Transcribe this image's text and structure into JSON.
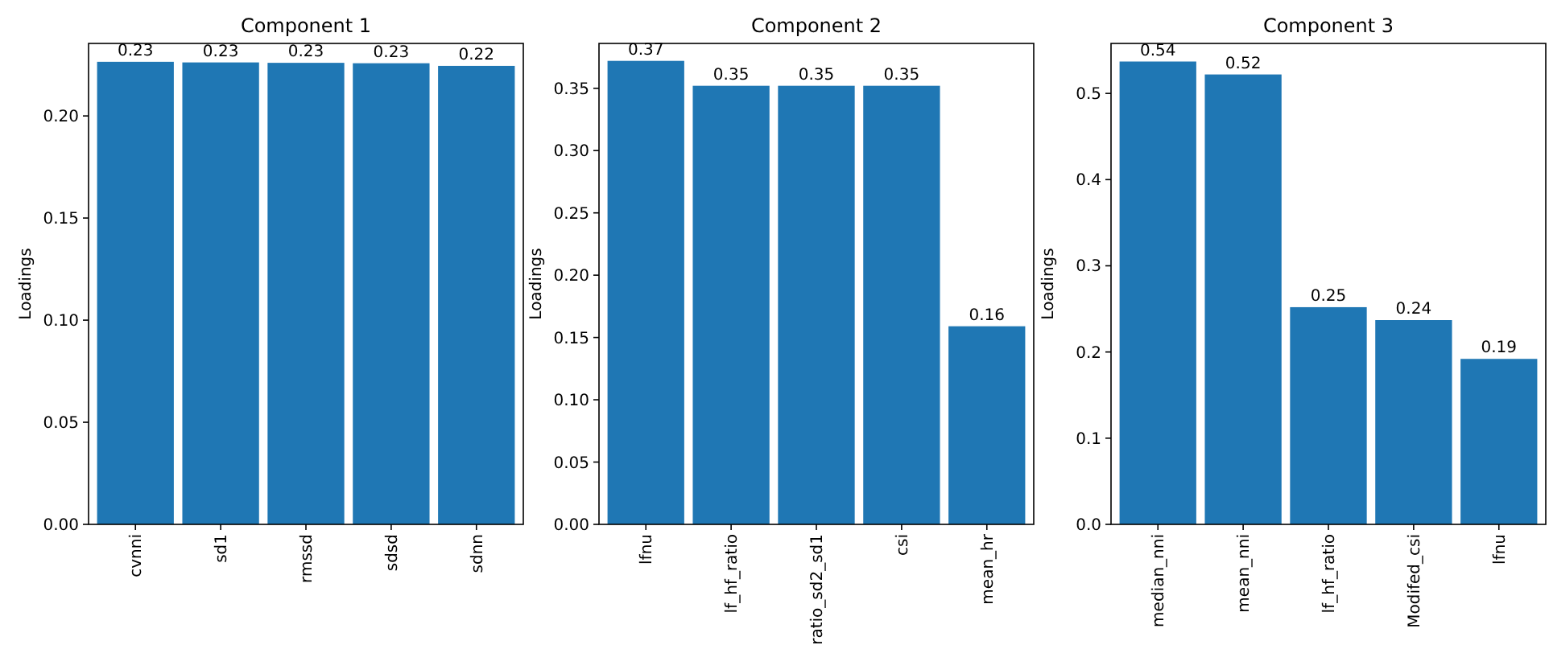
{
  "chart_data": [
    {
      "type": "bar",
      "title": "Component 1",
      "ylabel": "Loadings",
      "categories": [
        "cvnni",
        "sd1",
        "rmssd",
        "sdsd",
        "sdnn"
      ],
      "values": [
        0.2265,
        0.2262,
        0.226,
        0.2258,
        0.2245
      ],
      "value_labels": [
        "0.23",
        "0.23",
        "0.23",
        "0.23",
        "0.22"
      ],
      "color": "#1f77b4",
      "ylim": [
        0,
        0.2355
      ],
      "yticks": [
        {
          "value": 0,
          "label": "0.00"
        },
        {
          "value": 0.05,
          "label": "0.05"
        },
        {
          "value": 0.1,
          "label": "0.10"
        },
        {
          "value": 0.15,
          "label": "0.15"
        },
        {
          "value": 0.2,
          "label": "0.20"
        }
      ],
      "grid": false
    },
    {
      "type": "bar",
      "title": "Component 2",
      "ylabel": "Loadings",
      "categories": [
        "lfnu",
        "lf_hf_ratio",
        "ratio_sd2_sd1",
        "csi",
        "mean_hr"
      ],
      "values": [
        0.372,
        0.352,
        0.352,
        0.352,
        0.159
      ],
      "value_labels": [
        "0.37",
        "0.35",
        "0.35",
        "0.35",
        "0.16"
      ],
      "color": "#1f77b4",
      "ylim": [
        0,
        0.386
      ],
      "yticks": [
        {
          "value": 0,
          "label": "0.00"
        },
        {
          "value": 0.05,
          "label": "0.05"
        },
        {
          "value": 0.1,
          "label": "0.10"
        },
        {
          "value": 0.15,
          "label": "0.15"
        },
        {
          "value": 0.2,
          "label": "0.20"
        },
        {
          "value": 0.25,
          "label": "0.25"
        },
        {
          "value": 0.3,
          "label": "0.30"
        },
        {
          "value": 0.35,
          "label": "0.35"
        }
      ],
      "grid": false
    },
    {
      "type": "bar",
      "title": "Component 3",
      "ylabel": "Loadings",
      "categories": [
        "median_nni",
        "mean_nni",
        "lf_hf_ratio",
        "Modifed_csi",
        "lfnu"
      ],
      "values": [
        0.537,
        0.522,
        0.252,
        0.237,
        0.192
      ],
      "value_labels": [
        "0.54",
        "0.52",
        "0.25",
        "0.24",
        "0.19"
      ],
      "color": "#1f77b4",
      "ylim": [
        0,
        0.558
      ],
      "yticks": [
        {
          "value": 0,
          "label": "0.0"
        },
        {
          "value": 0.1,
          "label": "0.1"
        },
        {
          "value": 0.2,
          "label": "0.2"
        },
        {
          "value": 0.3,
          "label": "0.3"
        },
        {
          "value": 0.4,
          "label": "0.4"
        },
        {
          "value": 0.5,
          "label": "0.5"
        }
      ],
      "grid": false
    }
  ]
}
